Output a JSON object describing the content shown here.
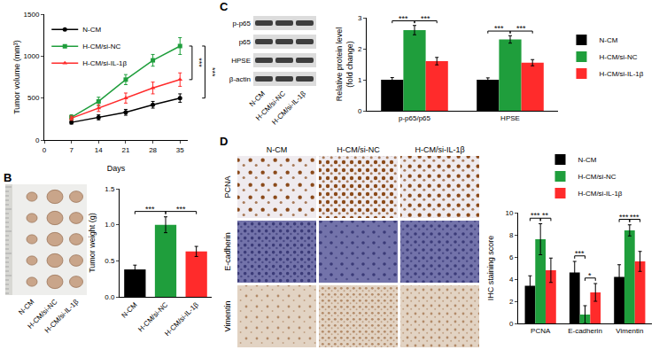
{
  "chart_data": [
    {
      "panel": "A",
      "type": "line",
      "x": [
        7,
        14,
        21,
        28,
        35
      ],
      "xlabel": "Days",
      "ylabel": "Tumor volume (mm³)",
      "xlim": [
        0,
        37
      ],
      "xticks": [
        0,
        7,
        14,
        21,
        28,
        35
      ],
      "ylim": [
        0,
        1500
      ],
      "yticks": [
        0,
        500,
        1000,
        1500
      ],
      "legend": "upper left",
      "grid": false,
      "series": [
        {
          "name": "N-CM",
          "color": "#000000",
          "marker": "circle",
          "values": [
            210,
            270,
            330,
            420,
            500
          ],
          "errors": [
            20,
            30,
            35,
            40,
            50
          ]
        },
        {
          "name": "H-CM/si-NC",
          "color": "#1f9e3c",
          "marker": "square",
          "values": [
            270,
            460,
            720,
            950,
            1120
          ],
          "errors": [
            30,
            50,
            60,
            70,
            100
          ]
        },
        {
          "name": "H-CM/si-IL-1β",
          "color": "#ff2b2b",
          "marker": "triangle-up",
          "values": [
            260,
            380,
            500,
            620,
            720
          ],
          "errors": [
            25,
            40,
            60,
            70,
            80
          ]
        }
      ],
      "significance": [
        {
          "between": [
            "H-CM/si-NC",
            "H-CM/si-IL-1β"
          ],
          "text": "***"
        },
        {
          "between": [
            "H-CM/si-NC",
            "N-CM"
          ],
          "text": "***"
        }
      ]
    },
    {
      "panel": "B",
      "type": "bar",
      "categories": [
        "N-CM",
        "H-CM/si-NC",
        "H-CM/si-IL-1β"
      ],
      "values": [
        0.38,
        1.0,
        0.63
      ],
      "errors": [
        0.06,
        0.11,
        0.07
      ],
      "colors": [
        "#000000",
        "#1f9e3c",
        "#ff2b2b"
      ],
      "ylabel": "Tumor weight (g)",
      "ylim": [
        0,
        1.5
      ],
      "yticks": [
        {
          "value": 0,
          "label": "0.0"
        },
        0.5,
        {
          "value": 1,
          "label": "1.0"
        },
        1.5
      ],
      "grid": false,
      "significance": [
        {
          "between": [
            "N-CM",
            "H-CM/si-NC"
          ],
          "text": "***"
        },
        {
          "between": [
            "H-CM/si-NC",
            "H-CM/si-IL-1β"
          ],
          "text": "***"
        }
      ]
    },
    {
      "panel": "C",
      "type": "bar",
      "categories": [
        "p-p65/p65",
        "HPSE"
      ],
      "ylabel": "Relative protein level\n(fold change)",
      "ylim": [
        0,
        3
      ],
      "yticks": [
        0,
        1,
        2,
        3
      ],
      "grid": false,
      "legend": "right",
      "series": [
        {
          "name": "N-CM",
          "color": "#000000",
          "values": [
            1.0,
            1.0
          ],
          "errors": [
            0.07,
            0.06
          ]
        },
        {
          "name": "H-CM/si-NC",
          "color": "#1f9e3c",
          "values": [
            2.6,
            2.3
          ],
          "errors": [
            0.15,
            0.12
          ]
        },
        {
          "name": "H-CM/si-IL-1β",
          "color": "#ff2b2b",
          "values": [
            1.6,
            1.55
          ],
          "errors": [
            0.12,
            0.1
          ]
        }
      ],
      "significance": [
        {
          "category": "p-p65/p65",
          "between": [
            "N-CM",
            "H-CM/si-NC"
          ],
          "text": "***"
        },
        {
          "category": "p-p65/p65",
          "between": [
            "H-CM/si-NC",
            "H-CM/si-IL-1β"
          ],
          "text": "***"
        },
        {
          "category": "HPSE",
          "between": [
            "N-CM",
            "H-CM/si-NC"
          ],
          "text": "***"
        },
        {
          "category": "HPSE",
          "between": [
            "H-CM/si-NC",
            "H-CM/si-IL-1β"
          ],
          "text": "***"
        }
      ]
    },
    {
      "panel": "D",
      "type": "bar",
      "categories": [
        "PCNA",
        "E-cadherin",
        "Vimentin"
      ],
      "ylabel": "IHC staining score",
      "ylim": [
        0,
        10
      ],
      "yticks": [
        0,
        2,
        4,
        6,
        8,
        10
      ],
      "grid": false,
      "legend": "top",
      "series": [
        {
          "name": "N-CM",
          "color": "#000000",
          "values": [
            3.4,
            4.6,
            4.2
          ],
          "errors": [
            0.9,
            1.0,
            1.1
          ]
        },
        {
          "name": "H-CM/si-NC",
          "color": "#1f9e3c",
          "values": [
            7.6,
            0.8,
            8.4
          ],
          "errors": [
            1.4,
            0.8,
            0.5
          ]
        },
        {
          "name": "H-CM/si-IL-1β",
          "color": "#ff2b2b",
          "values": [
            4.8,
            2.8,
            5.6
          ],
          "errors": [
            1.1,
            0.8,
            0.9
          ]
        }
      ],
      "significance": [
        {
          "category": "PCNA",
          "between": [
            "N-CM",
            "H-CM/si-NC"
          ],
          "text": "***"
        },
        {
          "category": "PCNA",
          "between": [
            "H-CM/si-NC",
            "H-CM/si-IL-1β"
          ],
          "text": "**"
        },
        {
          "category": "E-cadherin",
          "between": [
            "N-CM",
            "H-CM/si-NC"
          ],
          "text": "***"
        },
        {
          "category": "E-cadherin",
          "between": [
            "H-CM/si-NC",
            "H-CM/si-IL-1β"
          ],
          "text": "*"
        },
        {
          "category": "Vimentin",
          "between": [
            "N-CM",
            "H-CM/si-NC"
          ],
          "text": "***"
        },
        {
          "category": "Vimentin",
          "between": [
            "H-CM/si-NC",
            "H-CM/si-IL-1β"
          ],
          "text": "***"
        }
      ]
    }
  ],
  "images": {
    "B": {
      "labels": [
        "N-CM",
        "H-CM/si-NC",
        "H-CM/si-IL-1β"
      ]
    },
    "C": {
      "rows": [
        "p-p65",
        "p65",
        "HPSE",
        "β-actin"
      ],
      "lanes": [
        "N-CM",
        "H-CM/si-NC",
        "H-CM/si-IL-1β"
      ]
    },
    "D": {
      "columns": [
        "N-CM",
        "H-CM/si-NC",
        "H-CM/si-IL-1β"
      ],
      "rows": [
        "PCNA",
        "E-cadherin",
        "Vimentin"
      ]
    }
  }
}
